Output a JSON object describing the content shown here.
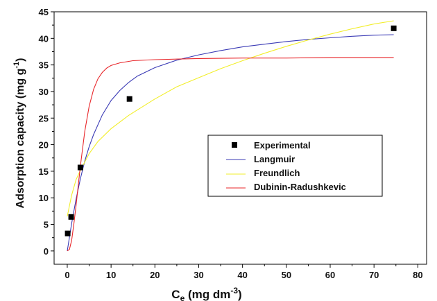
{
  "chart_data": {
    "type": "scatter",
    "xlabel": {
      "main": "C",
      "sub": "e",
      "rest": " (mg dm",
      "sup": "-3",
      "close": ")"
    },
    "ylabel": {
      "main": "Adsorption capacity (mg g",
      "sup": "-1",
      "close": ")"
    },
    "xlim": [
      -3,
      82
    ],
    "ylim": [
      -2.5,
      45
    ],
    "xticks": [
      0,
      10,
      20,
      30,
      40,
      50,
      60,
      70,
      80
    ],
    "yticks": [
      0,
      5,
      10,
      15,
      20,
      25,
      30,
      35,
      40,
      45
    ],
    "grid": false,
    "legend_position": "center-right",
    "series": [
      {
        "name": "Experimental",
        "kind": "points",
        "color": "#000000",
        "x": [
          0.1,
          0.9,
          3.0,
          14.2,
          74.5
        ],
        "y": [
          3.3,
          6.4,
          15.7,
          28.6,
          41.9
        ]
      },
      {
        "name": "Langmuir",
        "kind": "line",
        "color": "#3a3ab5",
        "x": [
          0,
          1,
          2,
          3,
          4,
          5,
          6,
          8,
          10,
          12,
          14,
          16,
          20,
          25,
          30,
          35,
          40,
          45,
          50,
          55,
          60,
          65,
          70,
          74.5
        ],
        "y": [
          0,
          5.2,
          9.7,
          13.6,
          16.9,
          19.6,
          21.9,
          25.6,
          28.3,
          30.2,
          31.7,
          32.9,
          34.5,
          35.9,
          36.9,
          37.7,
          38.4,
          38.9,
          39.4,
          39.8,
          40.1,
          40.4,
          40.6,
          40.7
        ]
      },
      {
        "name": "Freundlich",
        "kind": "line",
        "color": "#f2ee2a",
        "x": [
          0,
          0.5,
          1,
          2,
          3,
          5,
          7,
          10,
          14,
          20,
          25,
          30,
          35,
          40,
          45,
          50,
          55,
          60,
          65,
          70,
          74.5
        ],
        "y": [
          6.5,
          8.5,
          10.5,
          13.4,
          15.2,
          18.3,
          20.6,
          23.0,
          25.5,
          28.6,
          30.9,
          32.6,
          34.3,
          35.8,
          37.2,
          38.5,
          39.7,
          40.8,
          41.8,
          42.7,
          43.3
        ]
      },
      {
        "name": "Dubinin-Radushkevic",
        "kind": "line",
        "color": "#e8262a",
        "x": [
          0,
          0.5,
          1,
          1.5,
          2,
          3,
          4,
          5,
          6,
          7,
          8,
          9,
          10,
          12,
          15,
          20,
          30,
          40,
          50,
          60,
          74.5
        ],
        "y": [
          0,
          0.3,
          2.0,
          5.0,
          8.5,
          16.0,
          22.5,
          27.2,
          30.4,
          32.4,
          33.6,
          34.4,
          34.9,
          35.4,
          35.8,
          36.0,
          36.2,
          36.3,
          36.3,
          36.4,
          36.4
        ]
      }
    ]
  }
}
